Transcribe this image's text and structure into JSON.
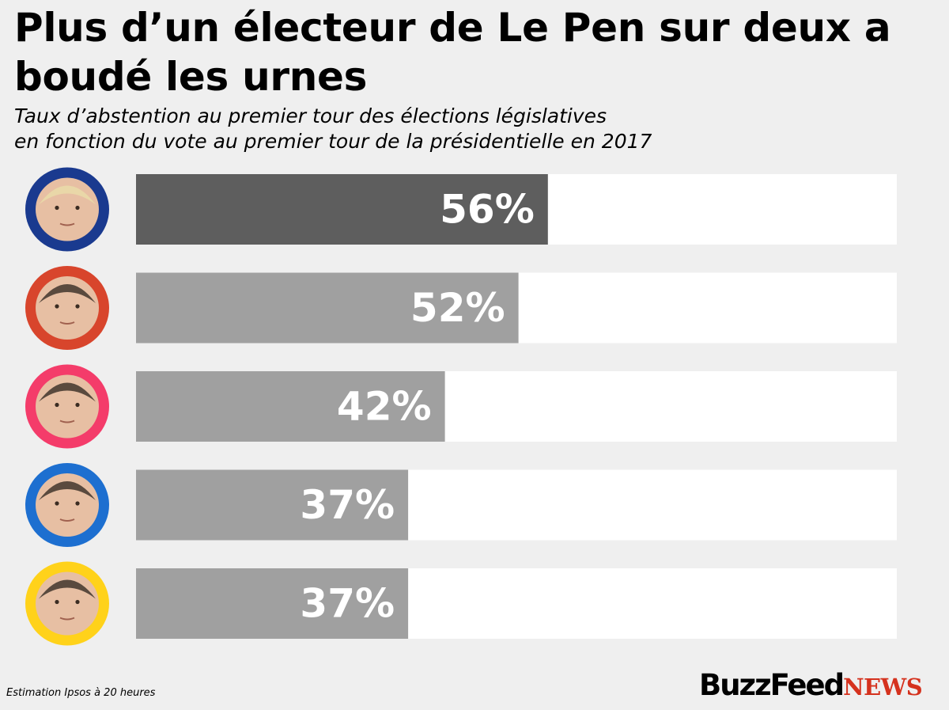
{
  "title": "Plus d’un électeur de Le Pen sur deux a boudé les urnes",
  "subtitle_lines": [
    "Taux d’abstention au premier tour des élections législatives",
    "en fonction du vote au premier tour de la présidentielle en 2017"
  ],
  "source": "Estimation Ipsos à 20 heures",
  "logo": {
    "part1": "BuzzFeed",
    "part2": "NEWS"
  },
  "colors": {
    "background": "#efefef",
    "track": "#ffffff",
    "highlight_bar": "#5e5e5e",
    "bar": "#a0a0a0",
    "value_text": "#ffffff",
    "logo_news": "#d5321e"
  },
  "chart_data": {
    "type": "bar",
    "orientation": "horizontal",
    "categories": [
      "",
      "",
      "",
      "",
      ""
    ],
    "values": [
      56,
      52,
      42,
      37,
      37
    ],
    "value_labels": [
      "56%",
      "52%",
      "42%",
      "37%",
      "37%"
    ],
    "avatars": [
      {
        "icon": "candidate-portrait-icon",
        "ring_color": "#1a3a8f"
      },
      {
        "icon": "candidate-portrait-icon",
        "ring_color": "#d8452c"
      },
      {
        "icon": "candidate-portrait-icon",
        "ring_color": "#f43c6a"
      },
      {
        "icon": "candidate-portrait-icon",
        "ring_color": "#1d6fd0"
      },
      {
        "icon": "candidate-portrait-icon",
        "ring_color": "#ffd21a"
      }
    ],
    "highlight_index": 0,
    "xlim": [
      0,
      100
    ],
    "grid": false,
    "axes_visible": false
  }
}
